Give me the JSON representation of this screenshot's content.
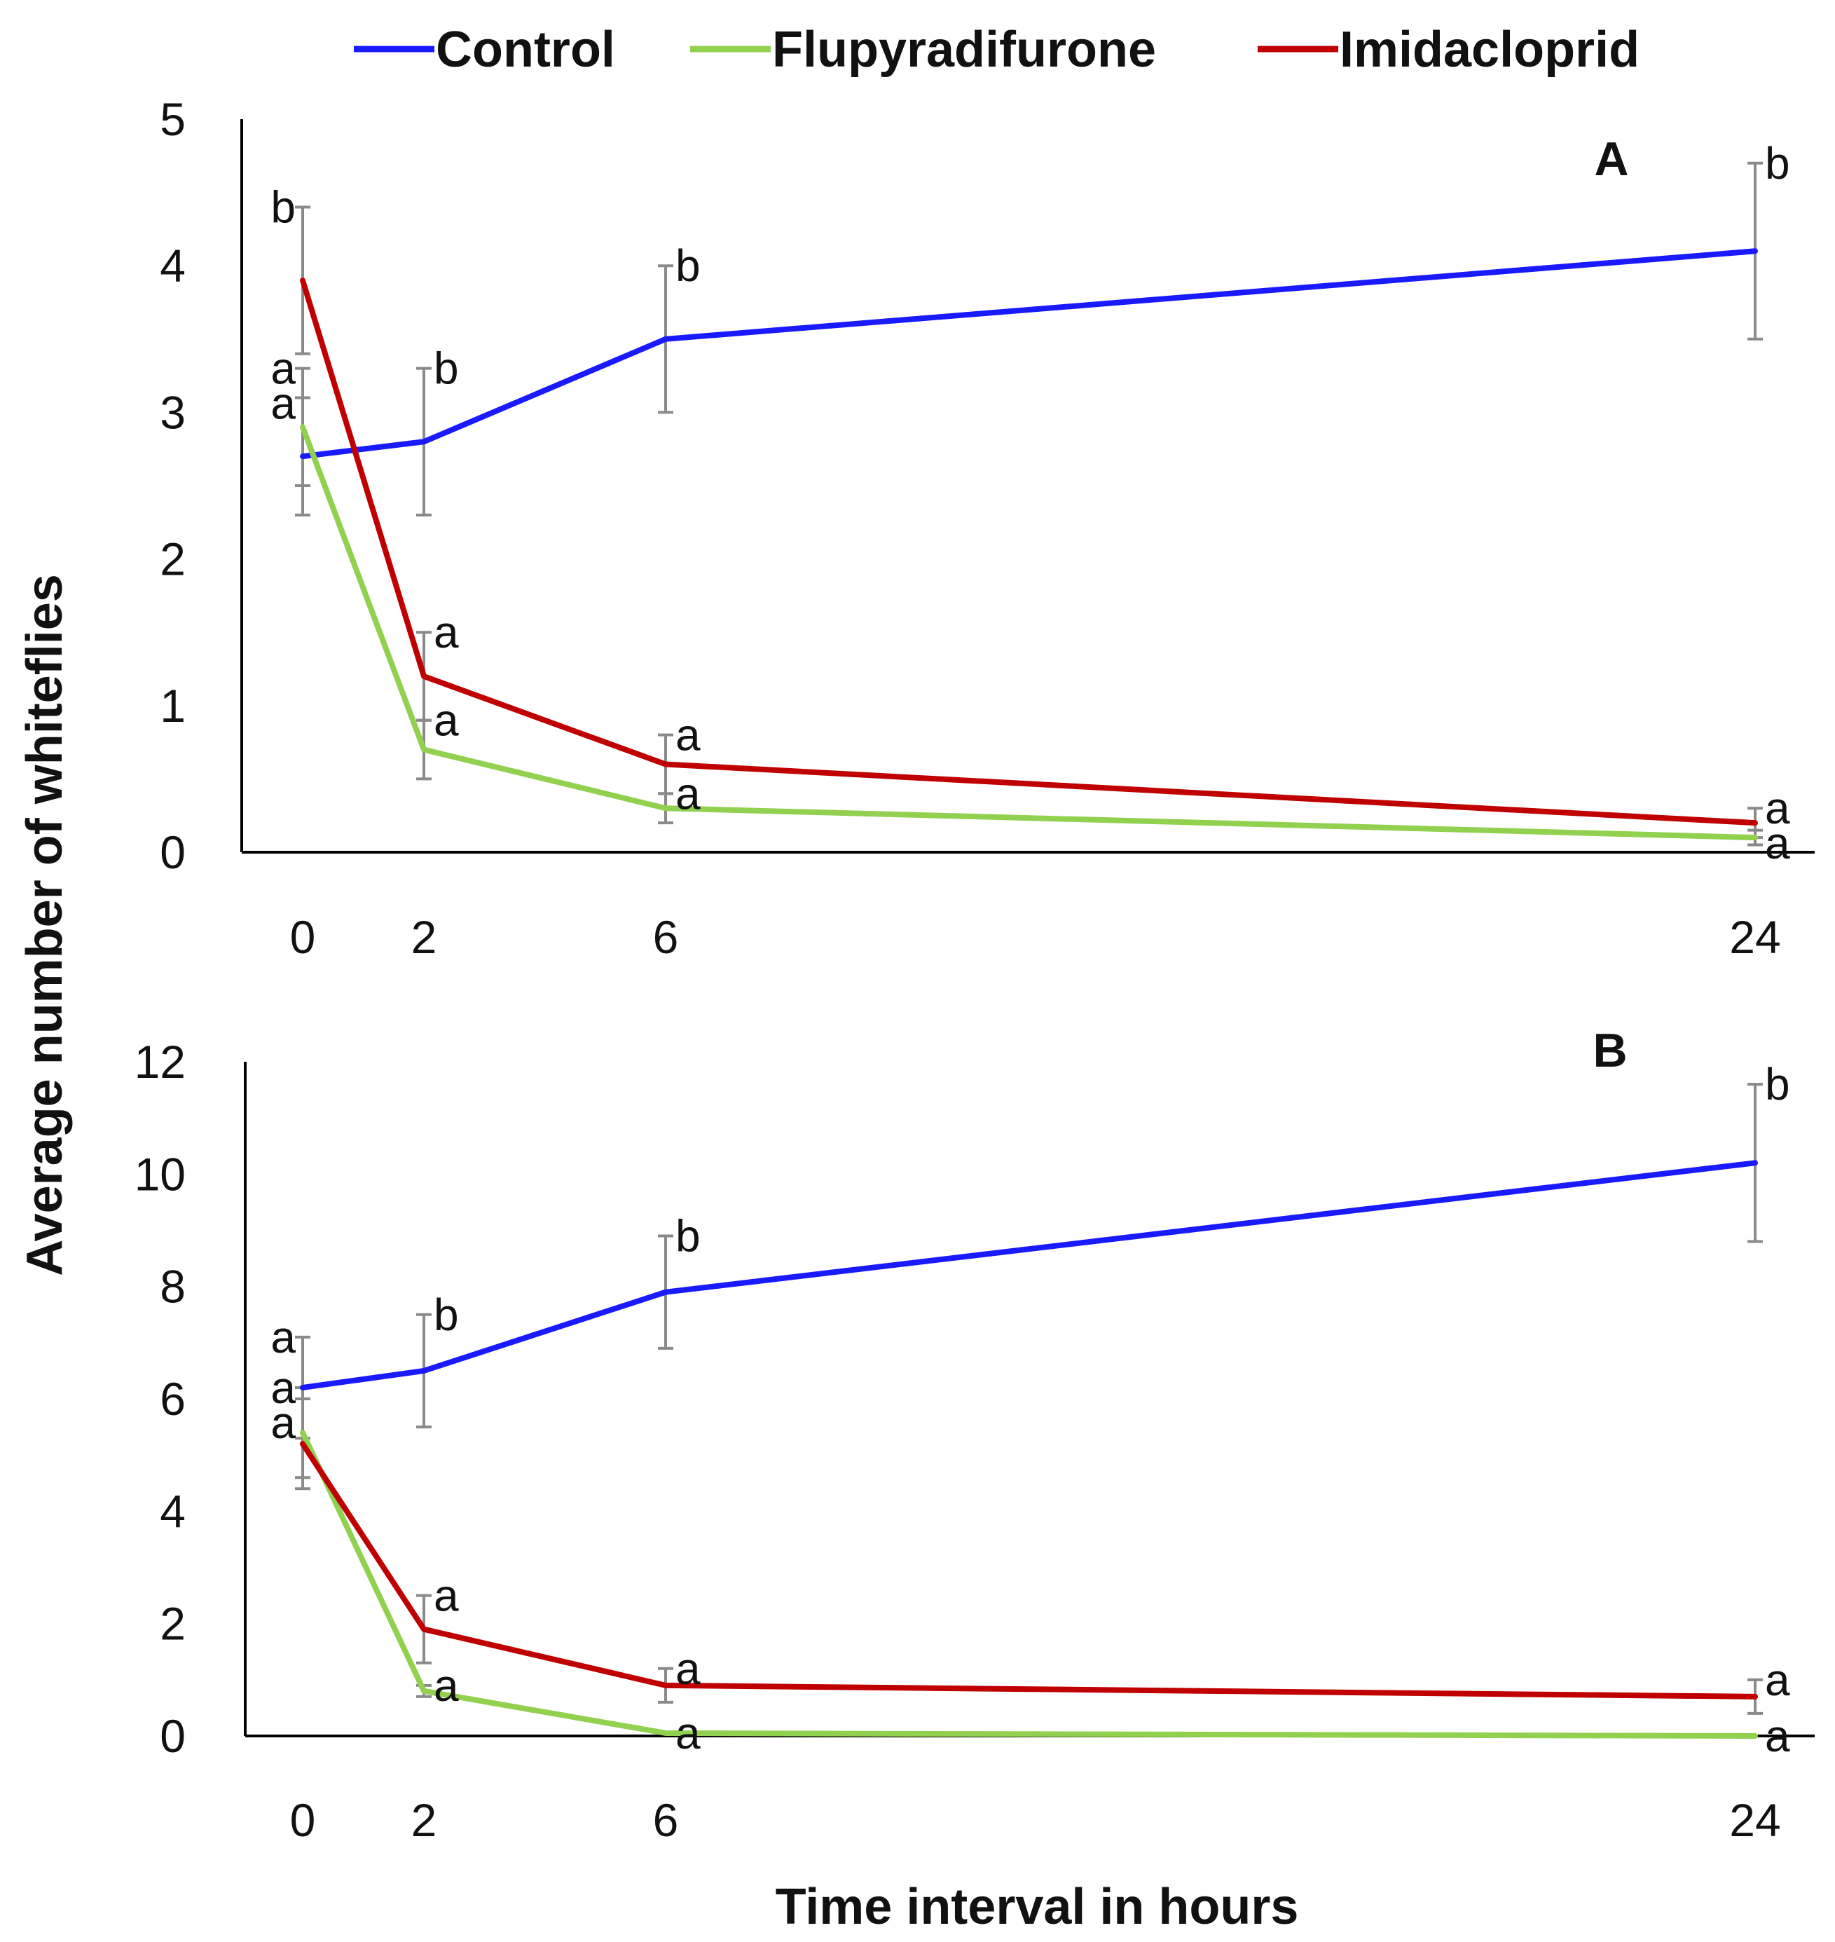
{
  "legend": [
    {
      "name": "Control",
      "color": "#1a1aff"
    },
    {
      "name": "Flupyradifurone",
      "color": "#92d050"
    },
    {
      "name": "Imidacloprid",
      "color": "#c00000"
    }
  ],
  "ylabel": "Average number of  whiteflies",
  "xlabel": "Time interval in hours",
  "chart_data": [
    {
      "type": "line",
      "panel_label": "A",
      "x": [
        0,
        2,
        6,
        24
      ],
      "x_tick_labels": [
        "0",
        "2",
        "6",
        "24"
      ],
      "ylim": [
        0,
        5
      ],
      "y_ticks": [
        0,
        1,
        2,
        3,
        4,
        5
      ],
      "xlabel": "Time interval in hours",
      "ylabel": "Average number of  whiteflies",
      "grid": false,
      "legend_position": "top",
      "series": [
        {
          "name": "Control",
          "color": "#1a1aff",
          "values": [
            2.7,
            2.8,
            3.5,
            4.1
          ],
          "error": [
            0.4,
            0.5,
            0.5,
            0.6
          ],
          "letters": [
            "a",
            "b",
            "b",
            "b"
          ]
        },
        {
          "name": "Flupyradifurone",
          "color": "#92d050",
          "values": [
            2.9,
            0.7,
            0.3,
            0.1
          ],
          "error": [
            0.4,
            0.2,
            0.1,
            0.05
          ],
          "letters": [
            "a",
            "a",
            "a",
            "a"
          ]
        },
        {
          "name": "Imidacloprid",
          "color": "#c00000",
          "values": [
            3.9,
            1.2,
            0.6,
            0.2
          ],
          "error": [
            0.5,
            0.3,
            0.2,
            0.1
          ],
          "letters": [
            "b",
            "a",
            "a",
            "a"
          ]
        }
      ]
    },
    {
      "type": "line",
      "panel_label": "B",
      "x": [
        0,
        2,
        6,
        24
      ],
      "x_tick_labels": [
        "0",
        "2",
        "6",
        "24"
      ],
      "ylim": [
        0,
        12
      ],
      "y_ticks": [
        0,
        2,
        4,
        6,
        8,
        10,
        12
      ],
      "xlabel": "Time interval in hours",
      "ylabel": "Average number of  whiteflies",
      "grid": false,
      "legend_position": "top",
      "series": [
        {
          "name": "Control",
          "color": "#1a1aff",
          "values": [
            6.2,
            6.5,
            7.9,
            10.2
          ],
          "error": [
            0.9,
            1.0,
            1.0,
            1.4
          ],
          "letters": [
            "a",
            "b",
            "b",
            "b"
          ]
        },
        {
          "name": "Flupyradifurone",
          "color": "#92d050",
          "values": [
            5.4,
            0.8,
            0.05,
            0.0
          ],
          "error": [
            0.8,
            0.1,
            0.0,
            0.0
          ],
          "letters": [
            "a",
            "a",
            "a",
            "a"
          ]
        },
        {
          "name": "Imidacloprid",
          "color": "#c00000",
          "values": [
            5.2,
            1.9,
            0.9,
            0.7
          ],
          "error": [
            0.8,
            0.6,
            0.3,
            0.3
          ],
          "letters": [
            "a",
            "a",
            "a",
            "a"
          ]
        }
      ]
    }
  ]
}
